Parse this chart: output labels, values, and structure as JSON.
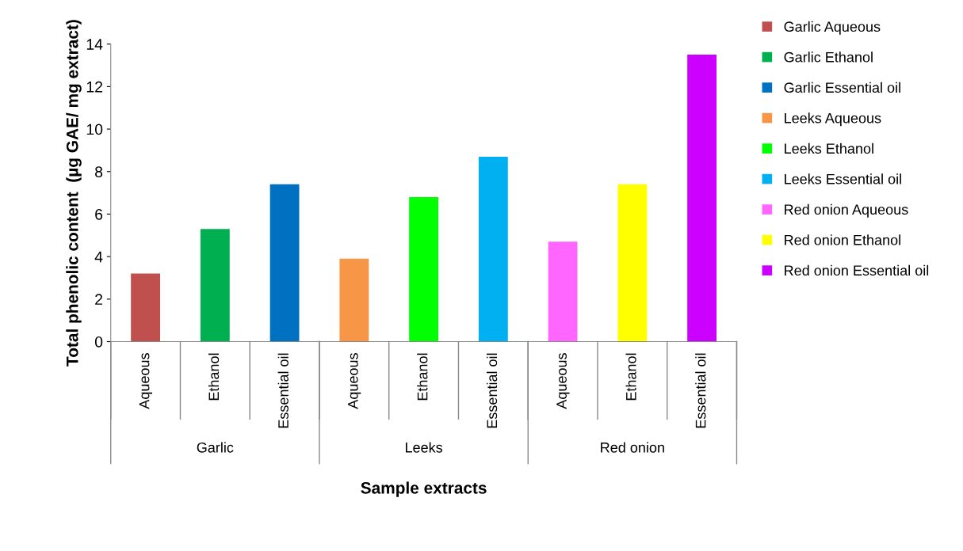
{
  "chart_data": {
    "type": "bar",
    "xlabel": "Sample extracts",
    "ylabel": "Total phenolic content  (µg GAE/ mg extract)",
    "categories": [
      "Aqueous",
      "Ethanol",
      "Essential oil",
      "Aqueous",
      "Ethanol",
      "Essential oil",
      "Aqueous",
      "Ethanol",
      "Essential oil"
    ],
    "annotations": [
      "Garlic",
      "Leeks",
      "Red onion"
    ],
    "series": [
      {
        "name": "Garlic Aqueous",
        "color": "#c0504d",
        "values": [
          3.2,
          null,
          null,
          null,
          null,
          null,
          null,
          null,
          null
        ]
      },
      {
        "name": "Garlic Ethanol",
        "color": "#00b050",
        "values": [
          null,
          5.3,
          null,
          null,
          null,
          null,
          null,
          null,
          null
        ]
      },
      {
        "name": "Garlic Essential oil",
        "color": "#0070c0",
        "values": [
          null,
          null,
          7.4,
          null,
          null,
          null,
          null,
          null,
          null
        ]
      },
      {
        "name": "Leeks Aqueous",
        "color": "#f79646",
        "values": [
          null,
          null,
          null,
          3.9,
          null,
          null,
          null,
          null,
          null
        ]
      },
      {
        "name": "Leeks Ethanol",
        "color": "#00ff00",
        "values": [
          null,
          null,
          null,
          null,
          6.8,
          null,
          null,
          null,
          null
        ]
      },
      {
        "name": "Leeks Essential oil",
        "color": "#00b0f0",
        "values": [
          null,
          null,
          null,
          null,
          null,
          8.7,
          null,
          null,
          null
        ]
      },
      {
        "name": "Red onion Aqueous",
        "color": "#ff66ff",
        "values": [
          null,
          null,
          null,
          null,
          null,
          null,
          4.7,
          null,
          null
        ]
      },
      {
        "name": "Red onion Ethanol",
        "color": "#ffff00",
        "values": [
          null,
          null,
          null,
          null,
          null,
          null,
          null,
          7.4,
          null
        ]
      },
      {
        "name": "Red onion Essential oil",
        "color": "#cc00ff",
        "values": [
          null,
          null,
          null,
          null,
          null,
          null,
          null,
          null,
          13.5
        ]
      }
    ],
    "ylim": [
      0,
      14
    ],
    "yticks": [
      0,
      2,
      4,
      6,
      8,
      10,
      12,
      14
    ],
    "grid": false,
    "legend": "top right"
  }
}
